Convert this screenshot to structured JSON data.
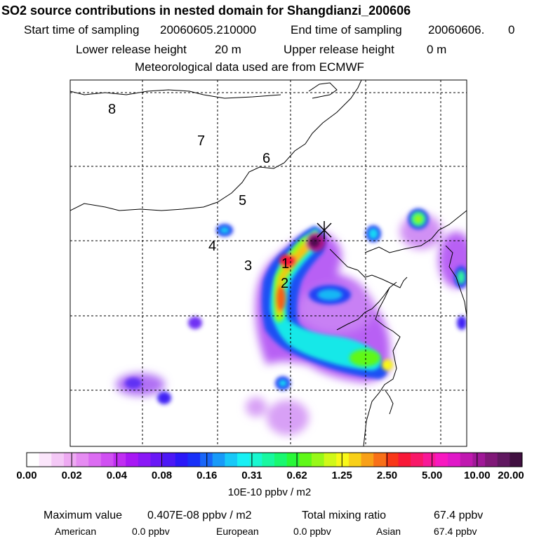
{
  "header": {
    "title": "SO2 source contributions in nested domain for Shangdianzi_200606",
    "start_label": "Start time of sampling",
    "start_value": "20060605.210000",
    "end_label": "End time of sampling",
    "end_value": "20060606.",
    "end_tail": "0",
    "lower_label": "Lower release height",
    "lower_value": "20 m",
    "upper_label": "Upper release height",
    "upper_value": "0 m",
    "met_text": "Meteorological data used are from ECMWF"
  },
  "map": {
    "track_labels": [
      "1",
      "2",
      "3",
      "4",
      "5",
      "6",
      "7",
      "8"
    ],
    "receptor_marker": "star-cross"
  },
  "colorbar": {
    "tick_labels": [
      "0.00",
      "0.02",
      "0.04",
      "0.08",
      "0.16",
      "0.31",
      "0.62",
      "1.25",
      "2.50",
      "5.00",
      "10.00",
      "20.00"
    ],
    "unit": "10E-10 ppbv / m2",
    "colors": [
      "#ffffff",
      "#fbe6fb",
      "#f4c8f6",
      "#eeaaf2",
      "#e68cf2",
      "#dc6cf2",
      "#d050f2",
      "#c02ef2",
      "#a818f4",
      "#8a18f6",
      "#6a18f6",
      "#4c18f6",
      "#2a18f8",
      "#1830f8",
      "#1866f8",
      "#189af8",
      "#18c8f8",
      "#18f0f4",
      "#18f8d0",
      "#18f8a0",
      "#18f870",
      "#28f838",
      "#60f818",
      "#98f818",
      "#d0f818",
      "#f8f818",
      "#f8d018",
      "#f8a018",
      "#f87018",
      "#f83818",
      "#f81838",
      "#f81868",
      "#f81898",
      "#f818c0",
      "#e018c8",
      "#c018b0",
      "#a01898",
      "#801878",
      "#601860",
      "#401040"
    ]
  },
  "stats": {
    "max_label": "Maximum value",
    "max_value": "0.407E-08 ppbv / m2",
    "total_label": "Total mixing ratio",
    "total_value": "67.4 ppbv",
    "american_label": "American",
    "american_value": "0.0 ppbv",
    "european_label": "European",
    "european_value": "0.0 ppbv",
    "asian_label": "Asian",
    "asian_value": "67.4 ppbv"
  },
  "chart_data": {
    "type": "heatmap",
    "title": "SO2 source contributions in nested domain for Shangdianzi_200606",
    "colorbar_levels": [
      0.0,
      0.02,
      0.04,
      0.08,
      0.16,
      0.31,
      0.62,
      1.25,
      2.5,
      5.0,
      10.0,
      20.0
    ],
    "colorbar_unit": "10E-10 ppbv / m2",
    "max_value": "0.407E-08 ppbv / m2",
    "total_mixing_ratio_ppbv": 67.4,
    "contributions_ppbv": {
      "American": 0.0,
      "European": 0.0,
      "Asian": 67.4
    },
    "backtrack_labels": [
      "1",
      "2",
      "3",
      "4",
      "5",
      "6",
      "7",
      "8"
    ],
    "grid": "dashed"
  }
}
